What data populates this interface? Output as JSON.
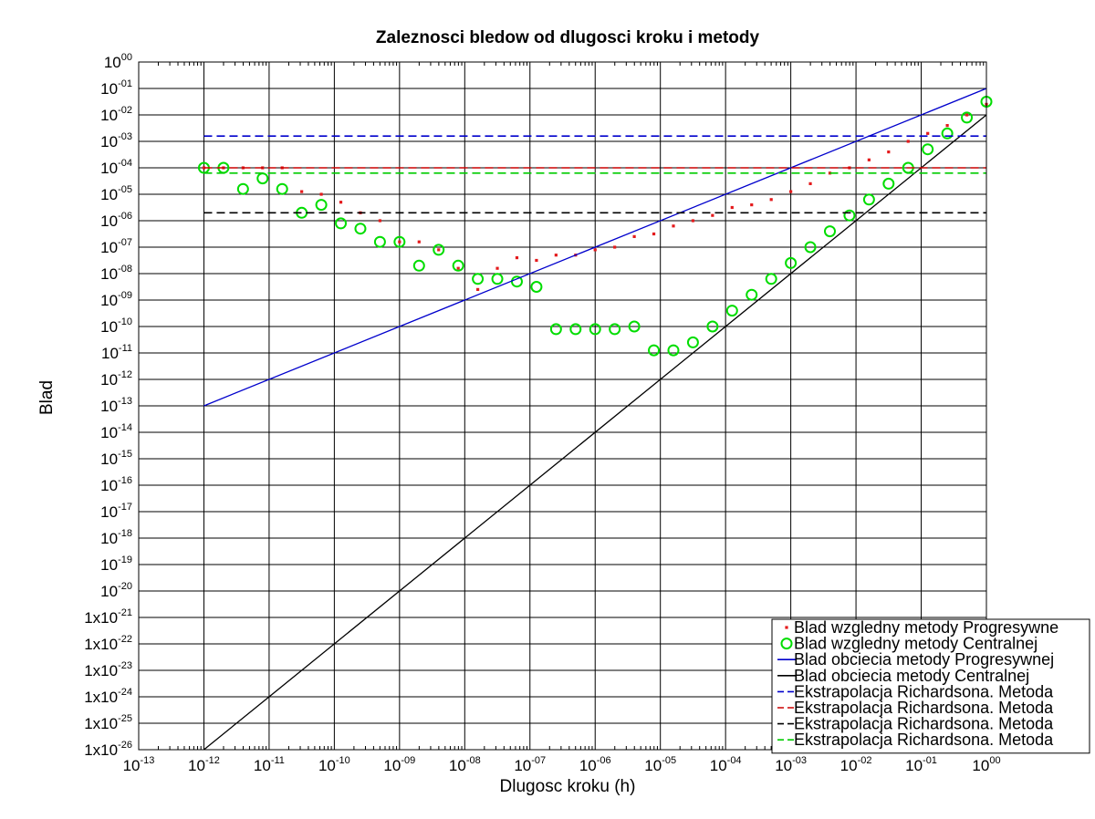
{
  "chart_data": {
    "type": "scatter",
    "title": "Zaleznosci bledow od dlugosci kroku i metody",
    "xlabel": "Dlugosc kroku (h)",
    "ylabel": "Blad",
    "xscale": "log",
    "yscale": "log",
    "xlim_exp": [
      -13,
      0
    ],
    "ylim_exp": [
      -26,
      0
    ],
    "grid": true,
    "legend_position": "bottom-right",
    "x_ticks": [
      {
        "base": "10",
        "exp": "-13",
        "v": -13
      },
      {
        "base": "10",
        "exp": "-12",
        "v": -12
      },
      {
        "base": "10",
        "exp": "-11",
        "v": -11
      },
      {
        "base": "10",
        "exp": "-10",
        "v": -10
      },
      {
        "base": "10",
        "exp": "-09",
        "v": -9
      },
      {
        "base": "10",
        "exp": "-08",
        "v": -8
      },
      {
        "base": "10",
        "exp": "-07",
        "v": -7
      },
      {
        "base": "10",
        "exp": "-06",
        "v": -6
      },
      {
        "base": "10",
        "exp": "-05",
        "v": -5
      },
      {
        "base": "10",
        "exp": "-04",
        "v": -4
      },
      {
        "base": "10",
        "exp": "-03",
        "v": -3
      },
      {
        "base": "10",
        "exp": "-02",
        "v": -2
      },
      {
        "base": "10",
        "exp": "-01",
        "v": -1
      },
      {
        "base": "10",
        "exp": "00",
        "v": 0
      }
    ],
    "y_ticks": [
      {
        "base": "10",
        "exp": "00",
        "v": 0
      },
      {
        "base": "10",
        "exp": "-01",
        "v": -1
      },
      {
        "base": "10",
        "exp": "-02",
        "v": -2
      },
      {
        "base": "10",
        "exp": "-03",
        "v": -3
      },
      {
        "base": "10",
        "exp": "-04",
        "v": -4
      },
      {
        "base": "10",
        "exp": "-05",
        "v": -5
      },
      {
        "base": "10",
        "exp": "-06",
        "v": -6
      },
      {
        "base": "10",
        "exp": "-07",
        "v": -7
      },
      {
        "base": "10",
        "exp": "-08",
        "v": -8
      },
      {
        "base": "10",
        "exp": "-09",
        "v": -9
      },
      {
        "base": "10",
        "exp": "-10",
        "v": -10
      },
      {
        "base": "10",
        "exp": "-11",
        "v": -11
      },
      {
        "base": "10",
        "exp": "-12",
        "v": -12
      },
      {
        "base": "10",
        "exp": "-13",
        "v": -13
      },
      {
        "base": "10",
        "exp": "-14",
        "v": -14
      },
      {
        "base": "10",
        "exp": "-15",
        "v": -15
      },
      {
        "base": "10",
        "exp": "-16",
        "v": -16
      },
      {
        "base": "10",
        "exp": "-17",
        "v": -17
      },
      {
        "base": "10",
        "exp": "-18",
        "v": -18
      },
      {
        "base": "10",
        "exp": "-19",
        "v": -19
      },
      {
        "base": "10",
        "exp": "-20",
        "v": -20
      },
      {
        "base": "1x10",
        "exp": "-21",
        "v": -21
      },
      {
        "base": "1x10",
        "exp": "-22",
        "v": -22
      },
      {
        "base": "1x10",
        "exp": "-23",
        "v": -23
      },
      {
        "base": "1x10",
        "exp": "-24",
        "v": -24
      },
      {
        "base": "1x10",
        "exp": "-25",
        "v": -25
      },
      {
        "base": "1x10",
        "exp": "-26",
        "v": -26
      }
    ],
    "series": [
      {
        "name": "Blad wzgledny metody Progresywne",
        "kind": "dots",
        "color": "#e41a1c",
        "log10_x": [
          -12.0,
          -11.7,
          -11.4,
          -11.1,
          -10.8,
          -10.5,
          -10.2,
          -9.9,
          -9.6,
          -9.3,
          -9.0,
          -8.7,
          -8.4,
          -8.1,
          -7.8,
          -7.5,
          -7.2,
          -6.9,
          -6.6,
          -6.3,
          -6.0,
          -5.7,
          -5.4,
          -5.1,
          -4.8,
          -4.5,
          -4.2,
          -3.9,
          -3.6,
          -3.3,
          -3.0,
          -2.7,
          -2.4,
          -2.1,
          -1.8,
          -1.5,
          -1.2,
          -0.9,
          -0.6,
          -0.3,
          0.0
        ],
        "log10_y": [
          -4.0,
          -4.0,
          -4.0,
          -4.0,
          -4.0,
          -4.9,
          -5.0,
          -5.3,
          -5.7,
          -6.0,
          -6.8,
          -6.8,
          -7.1,
          -7.8,
          -8.6,
          -7.8,
          -7.4,
          -7.5,
          -7.3,
          -7.3,
          -7.1,
          -7.0,
          -6.6,
          -6.5,
          -6.2,
          -6.0,
          -5.8,
          -5.5,
          -5.4,
          -5.2,
          -4.9,
          -4.6,
          -4.2,
          -4.0,
          -3.7,
          -3.4,
          -3.0,
          -2.7,
          -2.4,
          -2.0,
          -1.6
        ]
      },
      {
        "name": "Blad wzgledny metody Centralnej",
        "kind": "circles",
        "color": "#00dd00",
        "log10_x": [
          -12.0,
          -11.7,
          -11.4,
          -11.1,
          -10.8,
          -10.5,
          -10.2,
          -9.9,
          -9.6,
          -9.3,
          -9.0,
          -8.7,
          -8.4,
          -8.1,
          -7.8,
          -7.5,
          -7.2,
          -6.9,
          -6.6,
          -6.3,
          -6.0,
          -5.7,
          -5.4,
          -5.1,
          -4.8,
          -4.5,
          -4.2,
          -3.9,
          -3.6,
          -3.3,
          -3.0,
          -2.7,
          -2.4,
          -2.1,
          -1.8,
          -1.5,
          -1.2,
          -0.9,
          -0.6,
          -0.3,
          0.0
        ],
        "log10_y": [
          -4.0,
          -4.0,
          -4.8,
          -4.4,
          -4.8,
          -5.7,
          -5.4,
          -6.1,
          -6.3,
          -6.8,
          -6.8,
          -7.7,
          -7.1,
          -7.7,
          -8.2,
          -8.2,
          -8.3,
          -8.5,
          -10.1,
          -10.1,
          -10.1,
          -10.1,
          -10.0,
          -10.9,
          -10.9,
          -10.6,
          -10.0,
          -9.4,
          -8.8,
          -8.2,
          -7.6,
          -7.0,
          -6.4,
          -5.8,
          -5.2,
          -4.6,
          -4.0,
          -3.3,
          -2.7,
          -2.1,
          -1.5
        ]
      },
      {
        "name": "Blad obciecia metody Progresywnej",
        "kind": "line",
        "color": "#0000cc",
        "log10_x": [
          -12,
          0
        ],
        "log10_y": [
          -13.0,
          -1.0
        ]
      },
      {
        "name": "Blad obciecia metody Centralnej",
        "kind": "line",
        "color": "#000000",
        "log10_x": [
          -12,
          0
        ],
        "log10_y": [
          -26.0,
          -2.0
        ]
      },
      {
        "name": "Ekstrapolacja Richardsona. Metoda",
        "kind": "hline",
        "color": "#0000cc",
        "log10_x": [
          -12,
          0
        ],
        "log10_y": [
          -2.8,
          -2.8
        ]
      },
      {
        "name": "Ekstrapolacja Richardsona. Metoda",
        "kind": "hline",
        "color": "#cc0000",
        "log10_x": [
          -12,
          0
        ],
        "log10_y": [
          -4.0,
          -4.0
        ]
      },
      {
        "name": "Ekstrapolacja Richardsona. Metoda",
        "kind": "hline",
        "color": "#000000",
        "log10_x": [
          -12,
          0
        ],
        "log10_y": [
          -5.7,
          -5.7
        ]
      },
      {
        "name": "Ekstrapolacja Richardsona. Metoda",
        "kind": "hline",
        "color": "#00cc00",
        "log10_x": [
          -12,
          0
        ],
        "log10_y": [
          -4.2,
          -4.2
        ]
      }
    ]
  }
}
